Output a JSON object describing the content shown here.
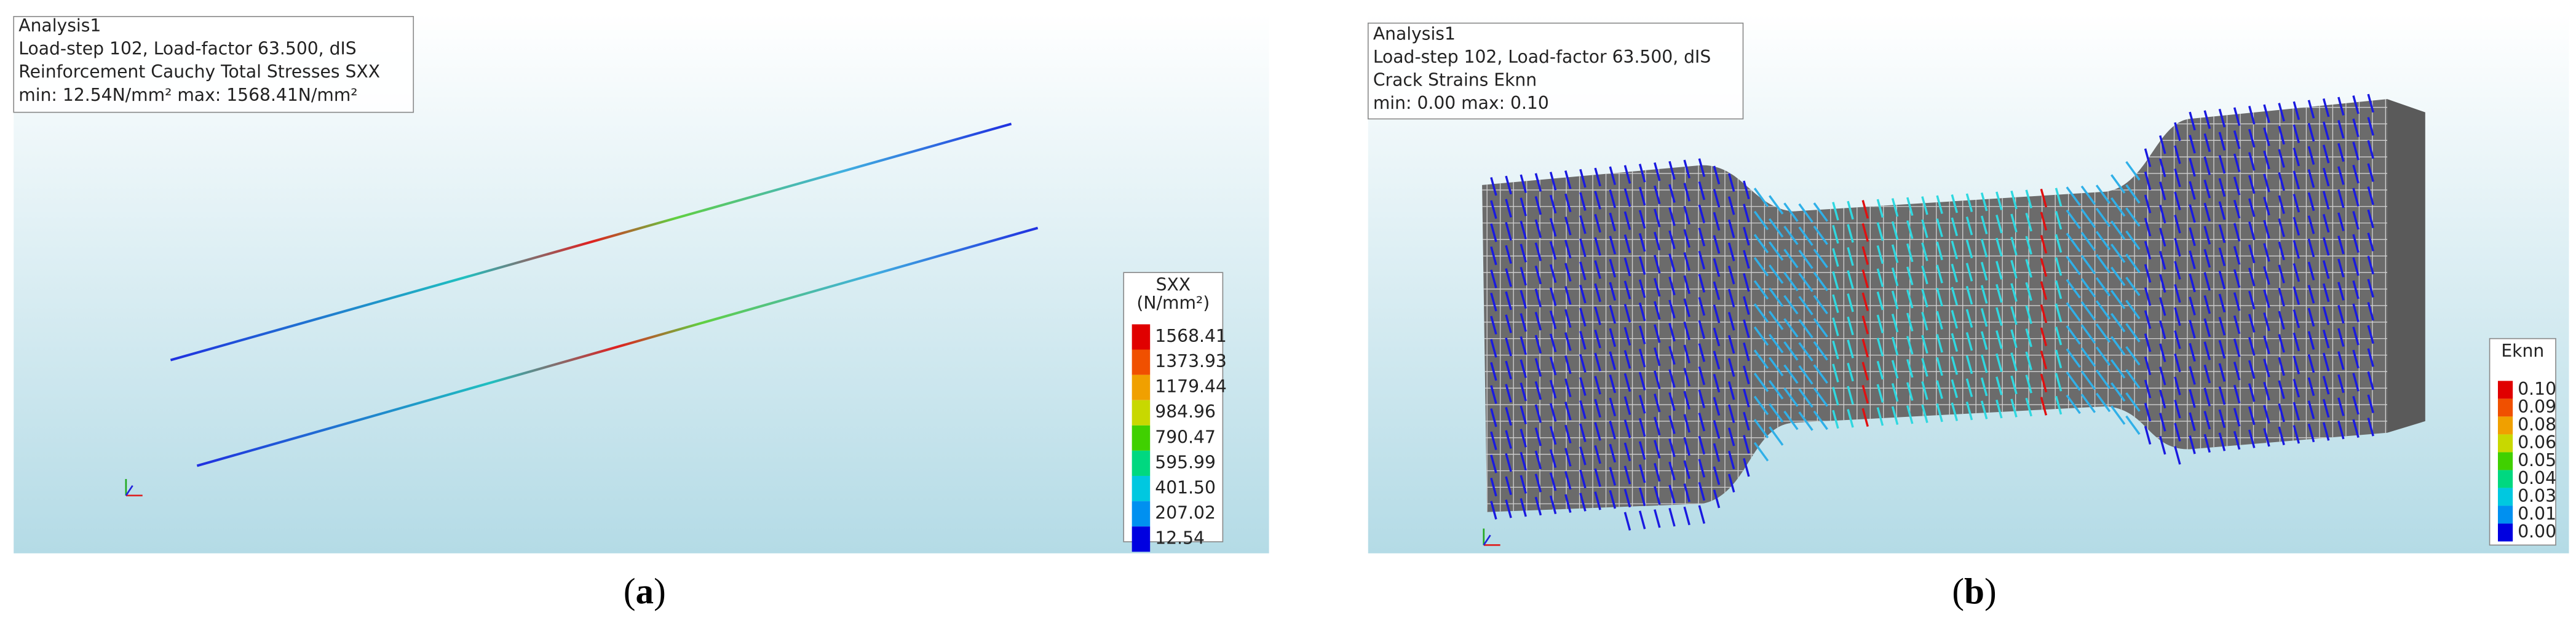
{
  "panels": [
    {
      "info": [
        "Analysis1",
        "Load-step 102, Load-factor 63.500, dIS",
        "Reinforcement Cauchy Total Stresses SXX",
        "min: 12.54N/mm² max: 1568.41N/mm²"
      ],
      "legend": {
        "title": [
          "SXX",
          "(N/mm²)"
        ],
        "labels": [
          "1568.41",
          "1373.93",
          "1179.44",
          "984.96",
          "790.47",
          "595.99",
          "401.50",
          "207.02",
          "12.54"
        ],
        "colors": [
          "#e00000",
          "#f05000",
          "#f0a000",
          "#c8d800",
          "#40d000",
          "#00d880",
          "#00c8e0",
          "#0090f0",
          "#0000e0"
        ]
      },
      "caption": [
        "(",
        "a",
        ")"
      ]
    },
    {
      "info": [
        "Analysis1",
        "Load-step 102, Load-factor 63.500, dIS",
        "Crack Strains Eknn",
        "min:  0.00 max:  0.10"
      ],
      "legend": {
        "title": [
          "Eknn"
        ],
        "labels": [
          "0.10",
          "0.09",
          "0.08",
          "0.06",
          "0.05",
          "0.04",
          "0.03",
          "0.01",
          "0.00"
        ],
        "colors": [
          "#e00000",
          "#f05000",
          "#f0a000",
          "#c8d800",
          "#40d000",
          "#00d880",
          "#00c8e0",
          "#0090f0",
          "#0000e0"
        ]
      },
      "caption": [
        "(",
        "b",
        ")"
      ]
    }
  ]
}
